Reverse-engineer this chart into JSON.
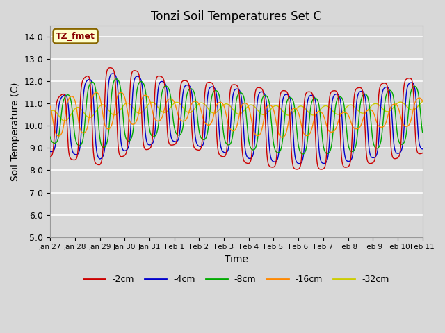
{
  "title": "Tonzi Soil Temperatures Set C",
  "xlabel": "Time",
  "ylabel": "Soil Temperature (C)",
  "ylim": [
    5.0,
    14.5
  ],
  "yticks": [
    5.0,
    6.0,
    7.0,
    8.0,
    9.0,
    10.0,
    11.0,
    12.0,
    13.0,
    14.0
  ],
  "colors": {
    "-2cm": "#cc0000",
    "-4cm": "#0000cc",
    "-8cm": "#00aa00",
    "-16cm": "#ff8800",
    "-32cm": "#cccc00"
  },
  "legend_label": "TZ_fmet",
  "legend_box_color": "#ffffcc",
  "legend_box_edge_color": "#886600",
  "legend_text_color": "#880000",
  "bg_color": "#d8d8d8",
  "plot_bg_color": "#d8d8d8",
  "grid_color": "#ffffff",
  "linewidth": 1.0,
  "xtick_labels": [
    "Jan 27",
    "Jan 28",
    "Jan 29",
    "Jan 30",
    "Jan 31",
    "Feb 1",
    "Feb 2",
    "Feb 3",
    "Feb 4",
    "Feb 5",
    "Feb 6",
    "Feb 7",
    "Feb 8",
    "Feb 9",
    "Feb 10",
    "Feb 11"
  ]
}
